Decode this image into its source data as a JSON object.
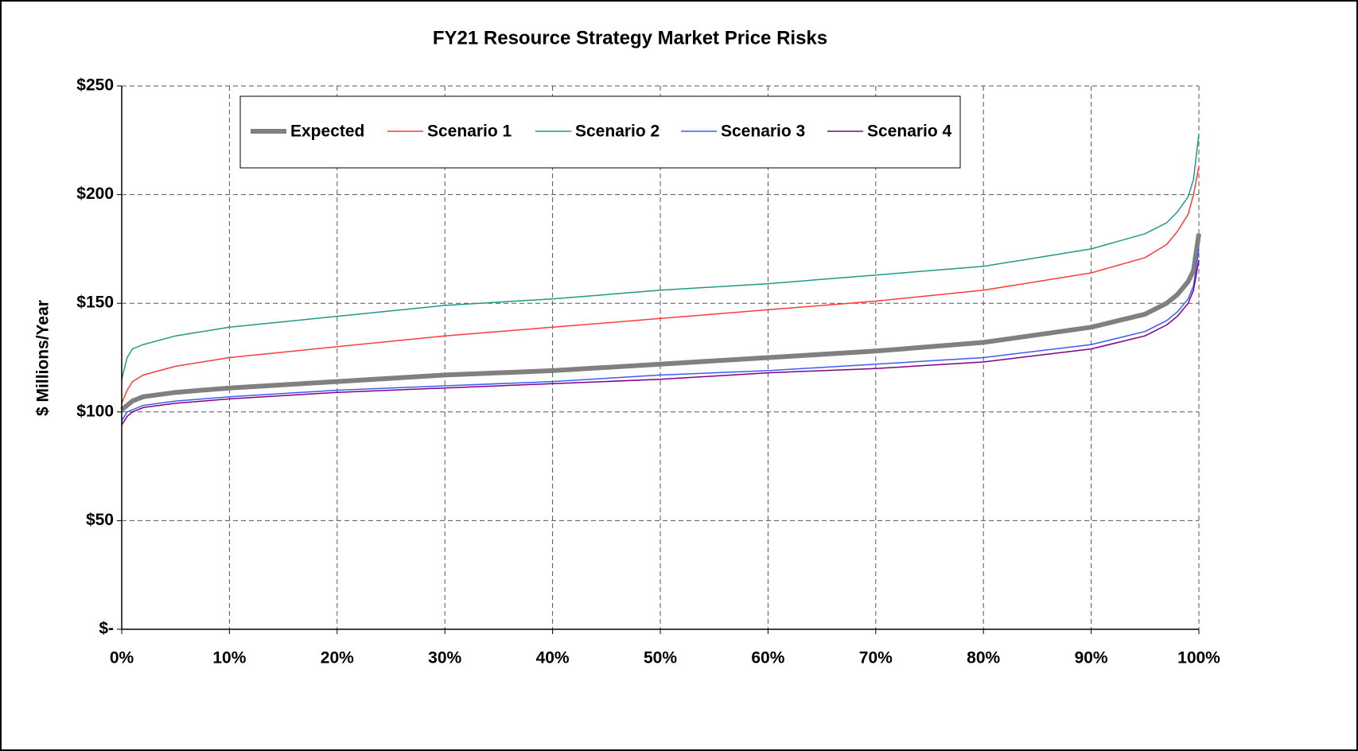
{
  "chart_data": {
    "type": "line",
    "title": "FY21 Resource Strategy Market Price Risks",
    "y_label": "$ Millions/Year",
    "x": [
      0,
      0.5,
      1,
      2,
      5,
      10,
      20,
      30,
      40,
      50,
      60,
      70,
      80,
      90,
      95,
      97,
      98,
      99,
      99.5,
      100
    ],
    "series": [
      {
        "name": "Expected",
        "color": "#808080",
        "values": [
          101,
          103,
          105,
          107,
          109,
          111,
          114,
          117,
          119,
          122,
          125,
          128,
          132,
          139,
          145,
          150,
          154,
          160,
          165,
          182
        ]
      },
      {
        "name": "Scenario 1",
        "color": "#ff3b3b",
        "values": [
          104,
          110,
          114,
          117,
          121,
          125,
          130,
          135,
          139,
          143,
          147,
          151,
          156,
          164,
          171,
          177,
          183,
          191,
          200,
          213
        ]
      },
      {
        "name": "Scenario 2",
        "color": "#1f9a8a",
        "values": [
          115,
          125,
          129,
          131,
          135,
          139,
          144,
          149,
          152,
          156,
          159,
          163,
          167,
          175,
          182,
          187,
          192,
          199,
          207,
          228
        ]
      },
      {
        "name": "Scenario 3",
        "color": "#3a5cff",
        "values": [
          96,
          100,
          101,
          103,
          105,
          107,
          110,
          112,
          114,
          117,
          119,
          122,
          125,
          131,
          137,
          142,
          146,
          152,
          158,
          175
        ]
      },
      {
        "name": "Scenario 4",
        "color": "#800080",
        "values": [
          94,
          98,
          100,
          102,
          104,
          106,
          109,
          111,
          113,
          115,
          118,
          120,
          123,
          129,
          135,
          140,
          144,
          150,
          156,
          170
        ]
      }
    ],
    "xlim": [
      0,
      100
    ],
    "xticks": [
      {
        "value": 0,
        "label": "0%"
      },
      {
        "value": 10,
        "label": "10%"
      },
      {
        "value": 20,
        "label": "20%"
      },
      {
        "value": 30,
        "label": "30%"
      },
      {
        "value": 40,
        "label": "40%"
      },
      {
        "value": 50,
        "label": "50%"
      },
      {
        "value": 60,
        "label": "60%"
      },
      {
        "value": 70,
        "label": "70%"
      },
      {
        "value": 80,
        "label": "80%"
      },
      {
        "value": 90,
        "label": "90%"
      },
      {
        "value": 100,
        "label": "100%"
      }
    ],
    "ylim": [
      0,
      250
    ],
    "yticks": [
      {
        "value": 0,
        "label": "$-"
      },
      {
        "value": 50,
        "label": "$50"
      },
      {
        "value": 100,
        "label": "$100"
      },
      {
        "value": 150,
        "label": "$150"
      },
      {
        "value": 200,
        "label": "$200"
      },
      {
        "value": 250,
        "label": "$250"
      }
    ],
    "grid": true
  }
}
